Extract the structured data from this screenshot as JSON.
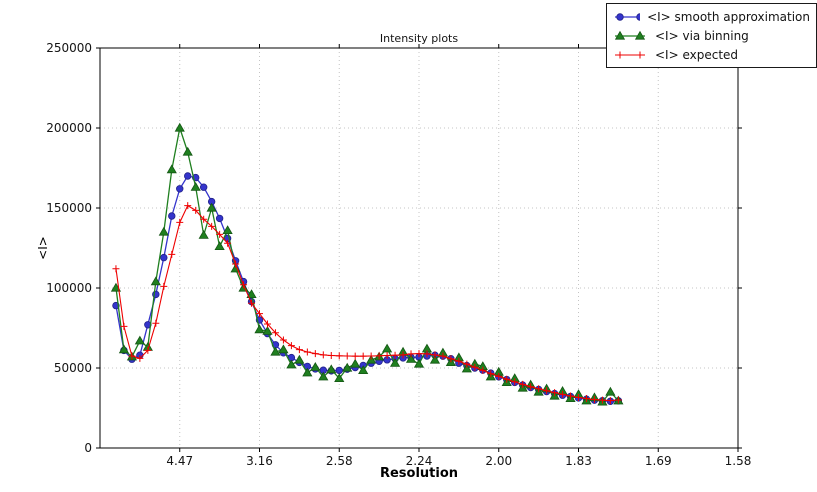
{
  "figure": {
    "title": "Intensity plots",
    "xlabel": "Resolution",
    "ylabel": "<I>"
  },
  "chart_data": {
    "type": "line",
    "title": "Intensity plots",
    "xlabel": "Resolution",
    "ylabel": "<I>",
    "grid": true,
    "legend_position": "upper-right",
    "x_axis": {
      "unit": "1/d^2",
      "range": [
        0,
        0.4
      ],
      "tick_positions": [
        0.05,
        0.1,
        0.15,
        0.2,
        0.25,
        0.3,
        0.35,
        0.4
      ],
      "tick_labels": [
        "4.47",
        "3.16",
        "2.58",
        "2.24",
        "2.00",
        "1.83",
        "1.69",
        "1.58"
      ]
    },
    "y_axis": {
      "range": [
        0,
        250000
      ],
      "tick_positions": [
        0,
        50000,
        100000,
        150000,
        200000,
        250000
      ],
      "tick_labels": [
        "0",
        "50000",
        "100000",
        "150000",
        "200000",
        "250000"
      ]
    },
    "colors": {
      "smooth": "#3434cc",
      "smooth_edge": "#22228a",
      "binning": "#1f7f1f",
      "binning_edge": "#145614",
      "expected": "#ee0000",
      "gridline": "#c4c4c4",
      "axis": "#000000",
      "tick_text": "#141414"
    },
    "x": [
      0.01,
      0.015,
      0.02,
      0.025,
      0.03,
      0.035,
      0.04,
      0.045,
      0.05,
      0.055,
      0.06,
      0.065,
      0.07,
      0.075,
      0.08,
      0.085,
      0.09,
      0.095,
      0.1,
      0.105,
      0.11,
      0.115,
      0.12,
      0.125,
      0.13,
      0.135,
      0.14,
      0.145,
      0.15,
      0.155,
      0.16,
      0.165,
      0.17,
      0.175,
      0.18,
      0.185,
      0.19,
      0.195,
      0.2,
      0.205,
      0.21,
      0.215,
      0.22,
      0.225,
      0.23,
      0.235,
      0.24,
      0.245,
      0.25,
      0.255,
      0.26,
      0.265,
      0.27,
      0.275,
      0.28,
      0.285,
      0.29,
      0.295,
      0.3,
      0.305,
      0.31,
      0.315,
      0.32,
      0.325
    ],
    "series": [
      {
        "name": "<I> smooth approximation",
        "marker": "circle",
        "color": "#3434cc",
        "values": [
          89000,
          61000,
          55500,
          58000,
          77000,
          96000,
          119000,
          145000,
          162000,
          170000,
          169000,
          163000,
          154000,
          143500,
          131000,
          117000,
          104000,
          91500,
          80000,
          71500,
          64500,
          59500,
          56500,
          53500,
          51000,
          49400,
          48600,
          48200,
          48500,
          49300,
          50300,
          51600,
          53000,
          54200,
          55100,
          55800,
          56300,
          56600,
          56800,
          57500,
          58000,
          57400,
          55800,
          53000,
          51500,
          50000,
          48700,
          46800,
          44500,
          42800,
          41000,
          39300,
          37800,
          36600,
          35300,
          34000,
          33000,
          32200,
          31300,
          30500,
          29900,
          29600,
          29200,
          29500
        ]
      },
      {
        "name": "<I> via binning",
        "marker": "triangle",
        "color": "#1f7f1f",
        "values": [
          100000,
          61500,
          57000,
          67000,
          63000,
          104000,
          135000,
          174000,
          200000,
          185000,
          163000,
          133000,
          150000,
          126000,
          136000,
          112000,
          100000,
          96000,
          74000,
          73000,
          60000,
          61500,
          52000,
          55000,
          47000,
          50500,
          44500,
          49000,
          43500,
          50000,
          52500,
          48500,
          55000,
          57000,
          62000,
          53000,
          60000,
          55500,
          52500,
          62000,
          55000,
          59500,
          53500,
          56500,
          49500,
          52500,
          51000,
          44500,
          47500,
          41000,
          43500,
          37500,
          39500,
          35000,
          37000,
          32500,
          35500,
          31000,
          33500,
          29500,
          31500,
          28800,
          35000,
          29500
        ]
      },
      {
        "name": "<I> expected",
        "marker": "plus",
        "color": "#ee0000",
        "values": [
          112000,
          76000,
          57500,
          56000,
          61000,
          78000,
          101000,
          121000,
          141000,
          151500,
          148500,
          143000,
          138500,
          133500,
          128000,
          115000,
          102000,
          90500,
          84000,
          77500,
          72000,
          67500,
          64000,
          61500,
          60000,
          59000,
          58200,
          57800,
          57600,
          57500,
          57400,
          57400,
          57500,
          57600,
          57800,
          58000,
          58200,
          58800,
          59000,
          58800,
          58200,
          57400,
          55800,
          54200,
          52400,
          50500,
          48500,
          46500,
          44800,
          43000,
          41300,
          39800,
          38300,
          37000,
          35800,
          34600,
          33500,
          32500,
          31600,
          30900,
          30300,
          29900,
          29600,
          30000
        ]
      }
    ]
  }
}
